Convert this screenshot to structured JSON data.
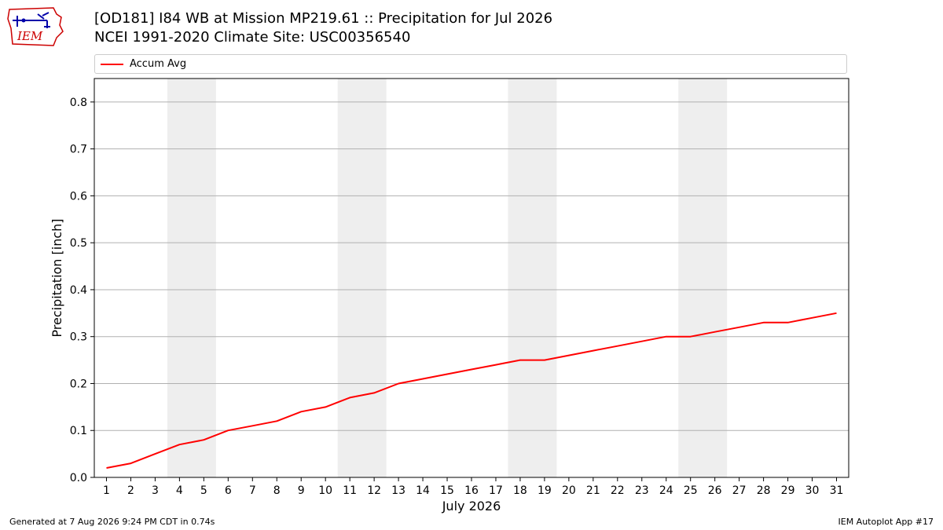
{
  "header": {
    "logo_text": "IEM",
    "title_line1": "[OD181] I84 WB at Mission MP219.61  :: Precipitation for Jul 2026",
    "title_line2": "NCEI 1991-2020 Climate Site: USC00356540"
  },
  "footer": {
    "generated": "Generated at 7 Aug 2026 9:24 PM CDT in 0.74s",
    "app": "IEM Autoplot App #17"
  },
  "colors": {
    "series_line": "#ff0000",
    "weekend_band": "#eeeeee",
    "grid": "#b0b0b0",
    "logo_red": "#cc0000",
    "logo_blue": "#0000aa"
  },
  "chart_data": {
    "type": "line",
    "xlabel": "July 2026",
    "ylabel": "Precipitation [inch]",
    "x": [
      1,
      2,
      3,
      4,
      5,
      6,
      7,
      8,
      9,
      10,
      11,
      12,
      13,
      14,
      15,
      16,
      17,
      18,
      19,
      20,
      21,
      22,
      23,
      24,
      25,
      26,
      27,
      28,
      29,
      30,
      31
    ],
    "xlim": [
      0.5,
      31.5
    ],
    "ylim": [
      0,
      0.85
    ],
    "yticks": [
      0.0,
      0.1,
      0.2,
      0.3,
      0.4,
      0.5,
      0.6,
      0.7,
      0.8
    ],
    "ytick_labels": [
      "0.0",
      "0.1",
      "0.2",
      "0.3",
      "0.4",
      "0.5",
      "0.6",
      "0.7",
      "0.8"
    ],
    "grid": "horizontal",
    "legend_position": "top",
    "shaded_day_ranges": [
      [
        3.5,
        5.5
      ],
      [
        10.5,
        12.5
      ],
      [
        17.5,
        19.5
      ],
      [
        24.5,
        26.5
      ]
    ],
    "series": [
      {
        "name": "Accum Avg",
        "color": "#ff0000",
        "values": [
          0.02,
          0.03,
          0.05,
          0.07,
          0.08,
          0.1,
          0.11,
          0.12,
          0.14,
          0.15,
          0.17,
          0.18,
          0.2,
          0.21,
          0.22,
          0.23,
          0.24,
          0.25,
          0.25,
          0.26,
          0.27,
          0.28,
          0.29,
          0.3,
          0.3,
          0.31,
          0.32,
          0.33,
          0.33,
          0.34,
          0.35
        ]
      }
    ]
  }
}
